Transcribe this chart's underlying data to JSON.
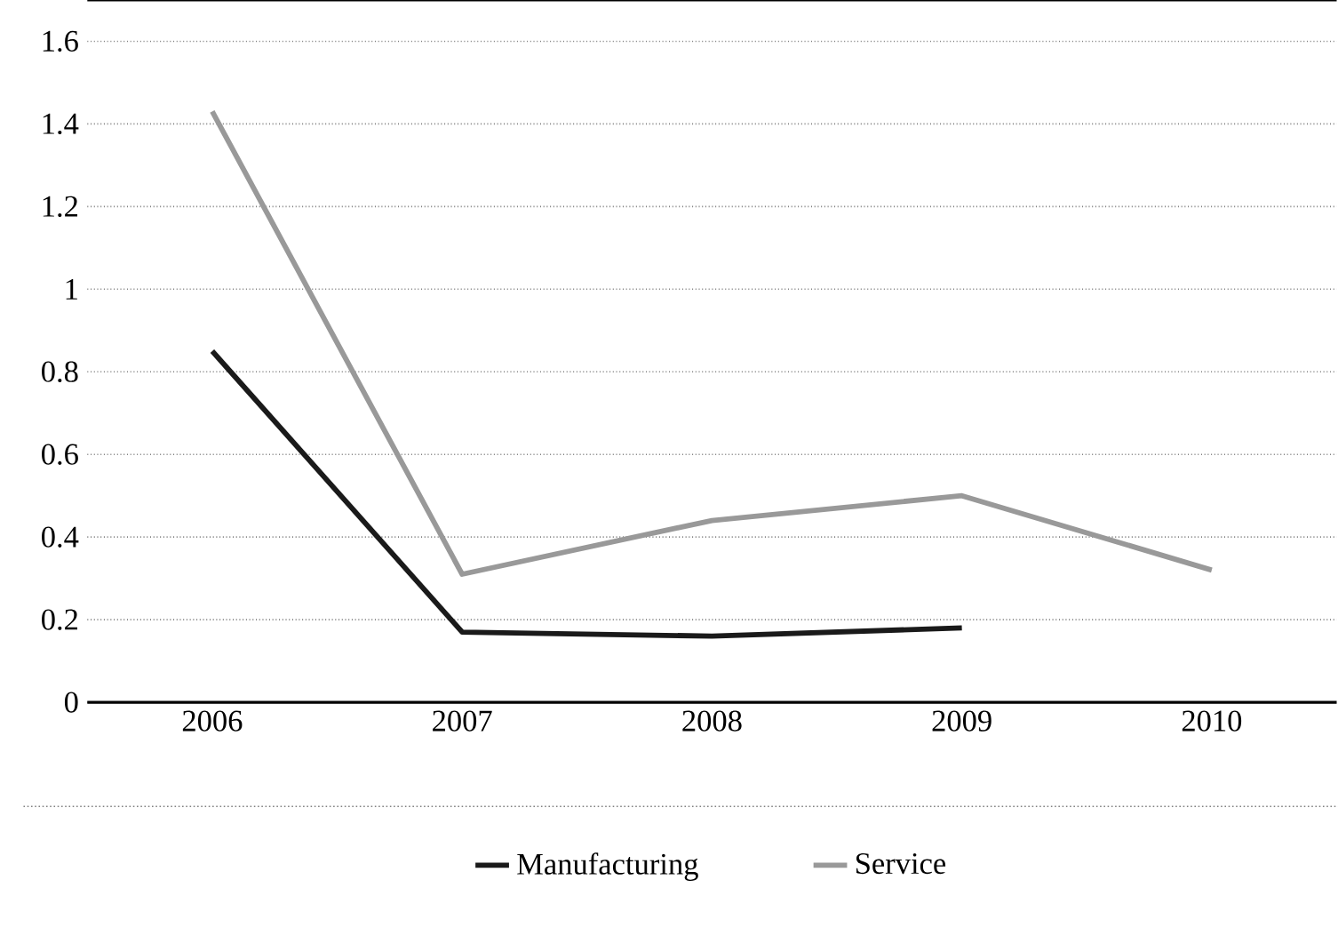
{
  "chart_data": {
    "type": "line",
    "categories": [
      "2006",
      "2007",
      "2008",
      "2009",
      "2010"
    ],
    "series": [
      {
        "name": "Manufacturing",
        "color": "#1a1a1a",
        "values": [
          0.85,
          0.17,
          0.16,
          0.18,
          null
        ]
      },
      {
        "name": "Service",
        "color": "#999999",
        "values": [
          1.43,
          0.31,
          0.44,
          0.5,
          0.32
        ]
      }
    ],
    "ylim": [
      0,
      1.7
    ],
    "yticks": [
      0,
      0.2,
      0.4,
      0.6,
      0.8,
      1,
      1.2,
      1.4,
      1.6
    ],
    "grid": "y",
    "legend": "bottom",
    "line_style": "solid",
    "marker": "none"
  }
}
